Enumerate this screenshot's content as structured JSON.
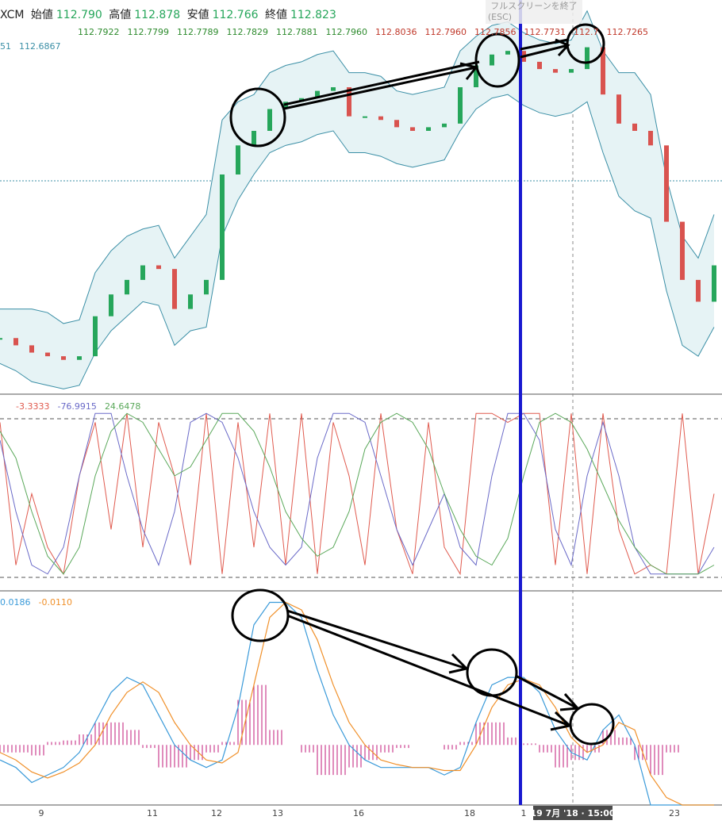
{
  "header": {
    "symbol": "XCM",
    "open_label": "始値",
    "open": "112.790",
    "high_label": "高値",
    "high": "112.878",
    "low_label": "安値",
    "low": "112.766",
    "close_label": "終値",
    "close": "112.823",
    "ma_values": [
      "112.7922",
      "112.7799",
      "112.7789",
      "112.7829",
      "112.7881",
      "112.7960",
      "112.8036",
      "112.7960",
      "112.7856",
      "112.7731",
      "112.7",
      "112.7265"
    ],
    "bb_values": [
      "51",
      "112.6867"
    ],
    "fullscreen": "フルスクリーンを終了",
    "esc": "(ESC)"
  },
  "stoch_values": [
    "-3.3333",
    "-76.9915",
    "24.6478"
  ],
  "macd_values": [
    "0.0186",
    "-0.0110"
  ],
  "x_labels": [
    "9",
    "11",
    "12",
    "13",
    "16",
    "18",
    "1",
    "23"
  ],
  "crosshair_label": "19 7月 '18 · 15:00",
  "chart_data": [
    {
      "type": "candlestick",
      "ylim": [
        -8,
        100
      ],
      "series": [
        {
          "name": "close",
          "color": "#26a65b",
          "values": [
            7,
            5,
            3,
            2,
            1,
            2,
            13,
            19,
            23,
            27,
            26,
            15,
            19,
            23,
            52,
            60,
            64,
            70,
            72,
            73,
            75,
            76,
            68,
            68,
            67,
            65,
            64,
            65,
            66,
            76,
            82,
            85,
            86,
            83,
            81,
            80,
            81,
            87,
            74,
            66,
            64,
            60,
            39,
            23,
            17,
            27
          ]
        },
        {
          "name": "upper",
          "color": "#3b8fa6",
          "values": [
            15,
            15,
            15,
            14,
            11,
            12,
            25,
            31,
            35,
            37,
            38,
            29,
            35,
            41,
            67,
            72,
            74,
            80,
            82,
            83,
            85,
            86,
            80,
            80,
            79,
            75,
            74,
            75,
            76,
            86,
            90,
            93,
            94,
            91,
            89,
            88,
            89,
            97,
            86,
            80,
            80,
            74,
            51,
            35,
            29,
            41
          ]
        },
        {
          "name": "lower",
          "color": "#3b8fa6",
          "values": [
            0,
            -2,
            -5,
            -6,
            -7,
            -6,
            3,
            9,
            13,
            17,
            16,
            5,
            9,
            10,
            35,
            45,
            52,
            58,
            60,
            61,
            63,
            64,
            58,
            58,
            57,
            55,
            54,
            55,
            56,
            64,
            70,
            73,
            74,
            71,
            69,
            68,
            69,
            72,
            58,
            46,
            42,
            40,
            20,
            5,
            2,
            10
          ]
        }
      ]
    },
    {
      "type": "line",
      "ylim": [
        0,
        100
      ],
      "series": [
        {
          "name": "k",
          "color": "#e05a4e",
          "values": [
            90,
            10,
            50,
            20,
            5,
            60,
            90,
            30,
            95,
            20,
            90,
            60,
            10,
            95,
            5,
            90,
            20,
            95,
            10,
            95,
            5,
            90,
            60,
            10,
            95,
            30,
            5,
            90,
            20,
            5,
            95,
            95,
            90,
            95,
            95,
            10,
            95,
            5,
            95,
            30,
            5,
            10,
            5,
            95,
            5,
            50
          ]
        },
        {
          "name": "d",
          "color": "#6a6ac8",
          "values": [
            80,
            40,
            10,
            5,
            20,
            60,
            95,
            95,
            60,
            30,
            10,
            40,
            90,
            95,
            90,
            70,
            40,
            20,
            10,
            20,
            70,
            95,
            95,
            90,
            60,
            30,
            10,
            30,
            50,
            20,
            10,
            60,
            95,
            95,
            80,
            30,
            10,
            60,
            90,
            60,
            20,
            5,
            5,
            5,
            5,
            20
          ]
        },
        {
          "name": "slow",
          "color": "#5aa85a",
          "values": [
            85,
            70,
            40,
            15,
            5,
            20,
            60,
            85,
            95,
            90,
            75,
            60,
            65,
            80,
            95,
            95,
            85,
            65,
            40,
            25,
            15,
            20,
            40,
            75,
            90,
            95,
            90,
            75,
            50,
            30,
            15,
            10,
            25,
            60,
            90,
            95,
            90,
            75,
            55,
            35,
            20,
            10,
            5,
            5,
            5,
            10
          ]
        }
      ]
    },
    {
      "type": "macd",
      "ylim": [
        -40,
        100
      ],
      "series": [
        {
          "name": "macd",
          "color": "#3a9ad9",
          "values": [
            -10,
            -15,
            -25,
            -20,
            -15,
            -5,
            15,
            35,
            45,
            40,
            20,
            0,
            -10,
            -15,
            -10,
            25,
            80,
            95,
            95,
            85,
            50,
            20,
            0,
            -10,
            -15,
            -15,
            -15,
            -15,
            -20,
            -15,
            15,
            40,
            45,
            45,
            35,
            10,
            -5,
            -10,
            10,
            20,
            0,
            -40,
            -40,
            -40,
            -40,
            -40
          ]
        },
        {
          "name": "signal",
          "color": "#f0902a",
          "values": [
            -5,
            -10,
            -18,
            -22,
            -18,
            -12,
            0,
            20,
            35,
            42,
            35,
            15,
            0,
            -10,
            -12,
            -5,
            40,
            85,
            95,
            90,
            70,
            40,
            15,
            0,
            -10,
            -13,
            -15,
            -15,
            -17,
            -17,
            0,
            25,
            40,
            44,
            40,
            25,
            5,
            -5,
            0,
            15,
            10,
            -20,
            -35,
            -40,
            -40,
            -40
          ]
        },
        {
          "name": "hist",
          "color": "#c2187a",
          "values": [
            -5,
            -5,
            -7,
            2,
            3,
            7,
            15,
            15,
            10,
            -2,
            -15,
            -15,
            -10,
            -5,
            2,
            30,
            40,
            10,
            0,
            -5,
            -20,
            -20,
            -15,
            -10,
            -5,
            -2,
            0,
            0,
            -3,
            2,
            15,
            15,
            5,
            1,
            -5,
            -15,
            -10,
            -5,
            10,
            5,
            -10,
            -20,
            -5,
            0,
            0,
            0
          ]
        }
      ]
    }
  ]
}
